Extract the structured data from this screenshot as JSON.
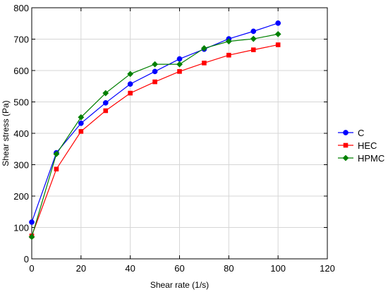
{
  "chart_data": {
    "type": "line",
    "title": "",
    "xlabel": "Shear rate (1/s)",
    "ylabel": "Shear stress (Pa)",
    "xlim": [
      0,
      120
    ],
    "ylim": [
      0,
      800
    ],
    "x_ticks": [
      0,
      20,
      40,
      60,
      80,
      100,
      120
    ],
    "y_ticks": [
      0,
      100,
      200,
      300,
      400,
      500,
      600,
      700,
      800
    ],
    "grid": true,
    "legend_position": "right",
    "series": [
      {
        "name": "C",
        "color": "#0000ff",
        "marker": "circle",
        "x": [
          0,
          10,
          20,
          30,
          40,
          50,
          60,
          70,
          80,
          90,
          100
        ],
        "y": [
          117,
          338,
          432,
          497,
          557,
          597,
          637,
          668,
          701,
          725,
          751
        ]
      },
      {
        "name": "HEC",
        "color": "#ff0000",
        "marker": "square",
        "x": [
          0,
          10,
          20,
          30,
          40,
          50,
          60,
          70,
          80,
          90,
          100
        ],
        "y": [
          73,
          286,
          406,
          472,
          528,
          564,
          597,
          624,
          649,
          666,
          682
        ]
      },
      {
        "name": "HPMC",
        "color": "#008000",
        "marker": "diamond",
        "x": [
          0,
          10,
          20,
          30,
          40,
          50,
          60,
          70,
          80,
          90,
          100
        ],
        "y": [
          70,
          334,
          451,
          528,
          589,
          620,
          620,
          671,
          693,
          701,
          716
        ]
      }
    ]
  }
}
